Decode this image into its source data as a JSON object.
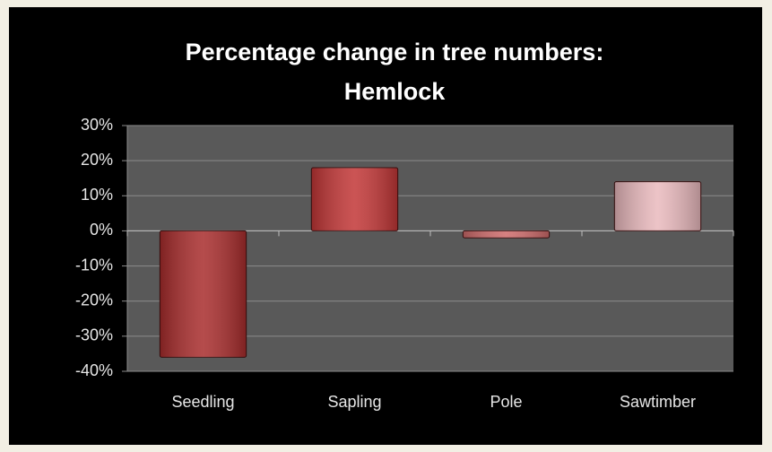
{
  "chart_data": {
    "type": "bar",
    "title": "Percentage change in tree numbers: Hemlock",
    "categories": [
      "Seedling",
      "Sapling",
      "Pole",
      "Sawtimber"
    ],
    "values": [
      -36,
      18,
      -2,
      14
    ],
    "colors": [
      "#a82c2c",
      "#c23636",
      "#cf6b6b",
      "#e9b9bd"
    ],
    "ylim": [
      -40,
      30
    ],
    "yticks": [
      {
        "value": -40,
        "label": "-40%"
      },
      {
        "value": -30,
        "label": "-30%"
      },
      {
        "value": -20,
        "label": "-20%"
      },
      {
        "value": -10,
        "label": "-10%"
      },
      {
        "value": 0,
        "label": "0%"
      },
      {
        "value": 10,
        "label": "10%"
      },
      {
        "value": 20,
        "label": "20%"
      },
      {
        "value": 30,
        "label": "30%"
      }
    ],
    "grid": true
  }
}
